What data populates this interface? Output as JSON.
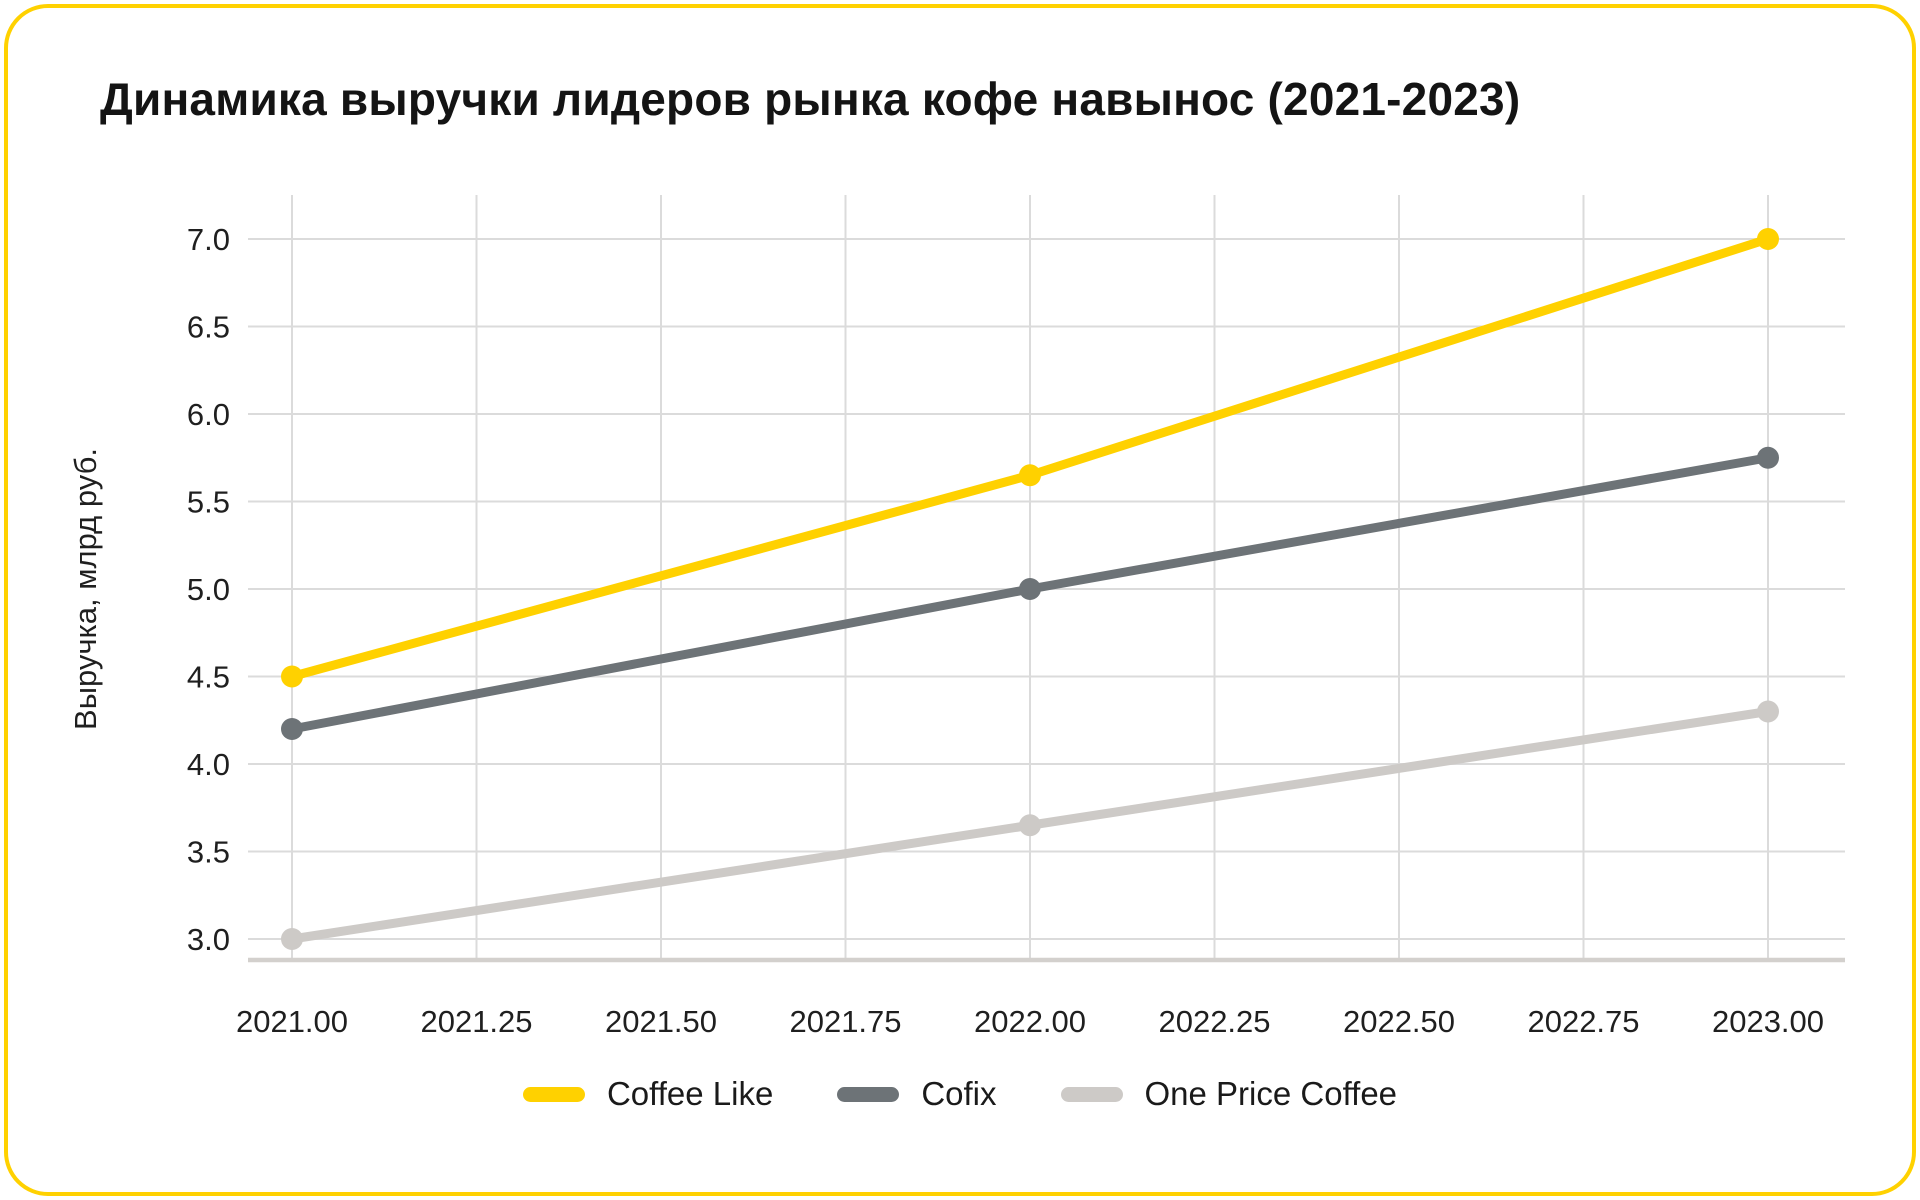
{
  "card": {
    "border_color": "#FFD100",
    "background_color": "#FFFFFF"
  },
  "chart_data": {
    "type": "line",
    "title": "Динамика выручки лидеров рынка кофе навынос (2021-2023)",
    "xlabel": "",
    "ylabel": "Выручка, млрд руб.",
    "x": [
      2021,
      2022,
      2023
    ],
    "series": [
      {
        "name": "Coffee Like",
        "color": "#FFD100",
        "values": [
          4.5,
          5.65,
          7.0
        ]
      },
      {
        "name": "Cofix",
        "color": "#6D7377",
        "values": [
          4.2,
          5.0,
          5.75
        ]
      },
      {
        "name": "One Price Coffee",
        "color": "#CDCAC7",
        "values": [
          3.0,
          3.65,
          4.3
        ]
      }
    ],
    "x_ticks": {
      "values": [
        2021.0,
        2021.25,
        2021.5,
        2021.75,
        2022.0,
        2022.25,
        2022.5,
        2022.75,
        2023.0
      ],
      "labels": [
        "2021.00",
        "2021.25",
        "2021.50",
        "2021.75",
        "2022.00",
        "2022.25",
        "2022.50",
        "2022.75",
        "2023.00"
      ]
    },
    "y_ticks": {
      "values": [
        3.0,
        3.5,
        4.0,
        4.5,
        5.0,
        5.5,
        6.0,
        6.5,
        7.0
      ],
      "labels": [
        "3.0",
        "3.5",
        "4.0",
        "4.5",
        "5.0",
        "5.5",
        "6.0",
        "6.5",
        "7.0"
      ]
    },
    "xlim": [
      2020.94,
      2023.1
    ],
    "ylim": [
      2.87,
      7.25
    ],
    "grid": true,
    "grid_color": "#DBDBDB",
    "axis_line_color": "#D3D0CD",
    "legend_position": "bottom",
    "marker": "circle"
  }
}
